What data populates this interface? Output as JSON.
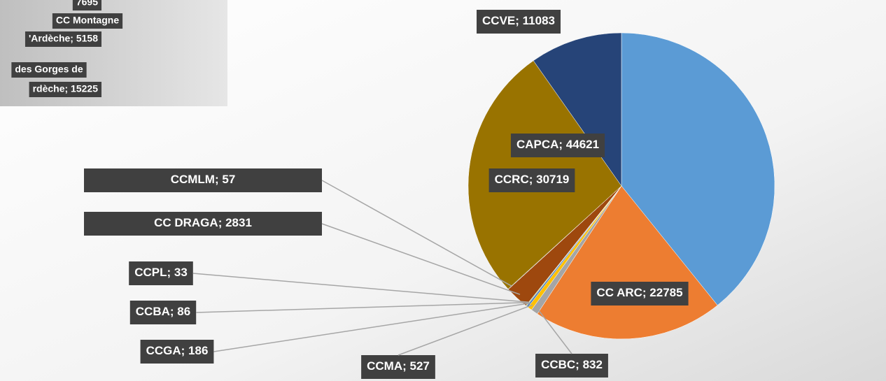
{
  "chart_data": {
    "type": "pie",
    "categories": [
      "CAPCA",
      "CC ARC",
      "CCBC",
      "CCMA",
      "CCGA",
      "CCBA",
      "CCPL",
      "CC DRAGA",
      "CCMLM",
      "CCRC",
      "CCVE"
    ],
    "values": [
      44621,
      22785,
      832,
      527,
      186,
      86,
      33,
      2831,
      57,
      30719,
      11083
    ],
    "colors": [
      "#5b9bd5",
      "#ed7d31",
      "#a5a5a5",
      "#ffc000",
      "#4472c4",
      "#70ad47",
      "#264478",
      "#9e480e",
      "#636363",
      "#997300",
      "#264478"
    ],
    "label_separator": "; "
  },
  "inset": {
    "labels": [
      "7695",
      "CC Montagne",
      "'Ardèche; 5158",
      "des Gorges de",
      "rdèche; 15225"
    ]
  }
}
